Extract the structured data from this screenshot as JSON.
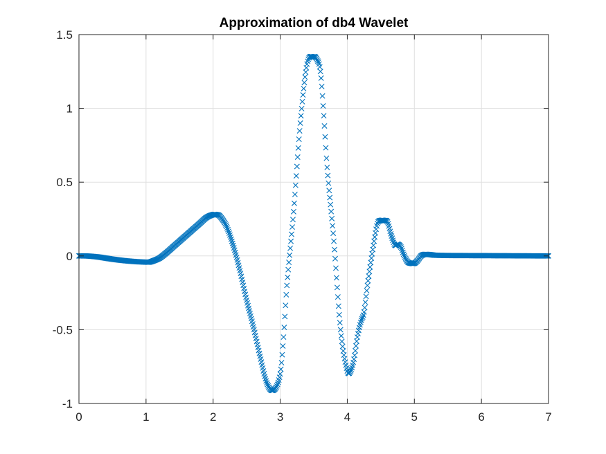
{
  "chart_data": {
    "type": "scatter",
    "title": "Approximation of db4 Wavelet",
    "xlabel": "",
    "ylabel": "",
    "xlim": [
      0,
      7
    ],
    "ylim": [
      -1,
      1.5
    ],
    "xticks": [
      0,
      1,
      2,
      3,
      4,
      5,
      6,
      7
    ],
    "yticks": [
      -1,
      -0.5,
      0,
      0.5,
      1,
      1.5
    ],
    "xtick_labels": [
      "0",
      "1",
      "2",
      "3",
      "4",
      "5",
      "6",
      "7"
    ],
    "ytick_labels": [
      "-1",
      "-0.5",
      "0",
      "0.5",
      "1",
      "1.5"
    ],
    "grid": true,
    "marker": "x",
    "series": [
      {
        "color": "#0072BD",
        "x": [
          0,
          0.1,
          0.2,
          0.3,
          0.4,
          0.5,
          0.6,
          0.7,
          0.8,
          0.9,
          1.0,
          1.05,
          1.1,
          1.2,
          1.3,
          1.4,
          1.5,
          1.6,
          1.7,
          1.8,
          1.9,
          2.0,
          2.05,
          2.1,
          2.2,
          2.3,
          2.4,
          2.5,
          2.6,
          2.7,
          2.8,
          2.9,
          3.0,
          3.05,
          3.1,
          3.2,
          3.3,
          3.4,
          3.5,
          3.55,
          3.6,
          3.65,
          3.7,
          3.8,
          3.9,
          4.0,
          4.05,
          4.1,
          4.15,
          4.2,
          4.25,
          4.3,
          4.4,
          4.45,
          4.5,
          4.55,
          4.6,
          4.65,
          4.7,
          4.72,
          4.75,
          4.8,
          4.85,
          4.9,
          4.95,
          5.0,
          5.05,
          5.1,
          5.15,
          5.2,
          5.25,
          5.3,
          5.5,
          6.0,
          6.5,
          7.0
        ],
        "y": [
          0,
          0,
          -0.003,
          -0.008,
          -0.015,
          -0.022,
          -0.028,
          -0.033,
          -0.037,
          -0.04,
          -0.042,
          -0.042,
          -0.035,
          -0.015,
          0.02,
          0.06,
          0.1,
          0.14,
          0.18,
          0.22,
          0.26,
          0.28,
          0.28,
          0.27,
          0.2,
          0.07,
          -0.1,
          -0.3,
          -0.48,
          -0.68,
          -0.86,
          -0.91,
          -0.8,
          -0.55,
          -0.2,
          0.3,
          0.9,
          1.3,
          1.35,
          1.33,
          1.25,
          0.95,
          0.6,
          0.1,
          -0.5,
          -0.78,
          -0.78,
          -0.7,
          -0.55,
          -0.45,
          -0.38,
          -0.2,
          0.1,
          0.22,
          0.24,
          0.24,
          0.23,
          0.15,
          0.08,
          0.07,
          0.08,
          0.06,
          0.0,
          -0.04,
          -0.05,
          -0.05,
          -0.03,
          0.0,
          0.01,
          0.01,
          0.008,
          0.005,
          0.003,
          0.002,
          0.001,
          0
        ]
      }
    ]
  }
}
